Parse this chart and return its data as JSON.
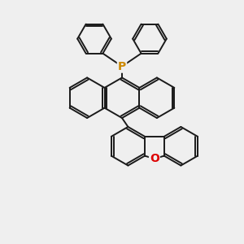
{
  "bg_color": "#efefef",
  "bond_color": "#1a1a1a",
  "bond_width": 1.4,
  "P_color": "#cc8800",
  "O_color": "#dd0000",
  "P_label": "P",
  "O_label": "O",
  "P_fontsize": 10,
  "O_fontsize": 10,
  "fig_width": 3.0,
  "fig_height": 3.0,
  "dpi": 100
}
